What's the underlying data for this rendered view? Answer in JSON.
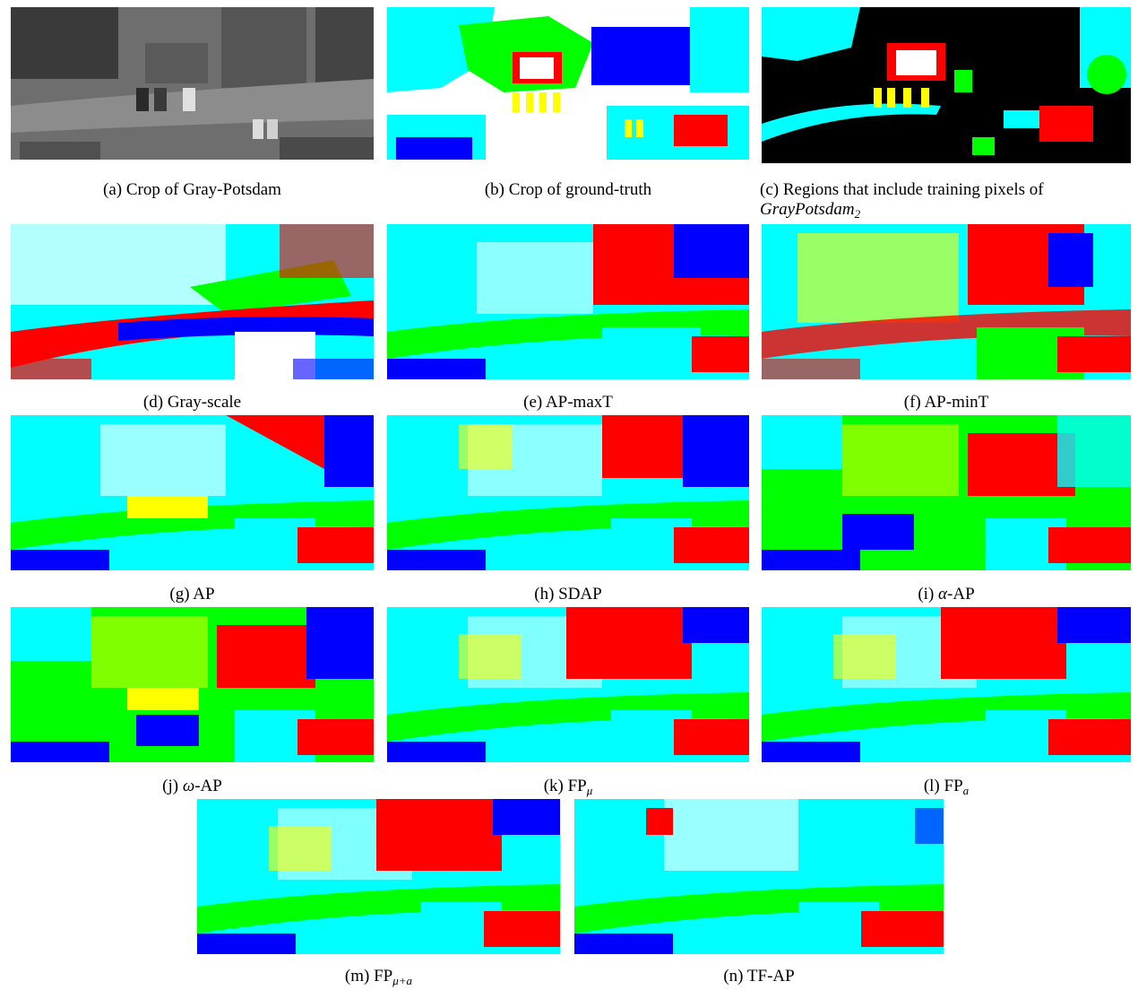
{
  "figure": {
    "panels": [
      {
        "id": "a",
        "label": "(a)",
        "caption": "Crop of Gray-Potsdam"
      },
      {
        "id": "b",
        "label": "(b)",
        "caption": "Crop of ground-truth"
      },
      {
        "id": "c",
        "label": "(c)",
        "caption": "Regions that include training pixels of",
        "caption_math": "GrayPotsdam",
        "caption_math_sub": "2"
      },
      {
        "id": "d",
        "label": "(d)",
        "caption": "Gray-scale"
      },
      {
        "id": "e",
        "label": "(e)",
        "caption": "AP-maxT"
      },
      {
        "id": "f",
        "label": "(f)",
        "caption": "AP-minT"
      },
      {
        "id": "g",
        "label": "(g)",
        "caption": "AP"
      },
      {
        "id": "h",
        "label": "(h)",
        "caption": "SDAP"
      },
      {
        "id": "i",
        "label": "(i)",
        "caption_greek": "α",
        "caption": "-AP"
      },
      {
        "id": "j",
        "label": "(j)",
        "caption_greek": "ω",
        "caption": "-AP"
      },
      {
        "id": "k",
        "label": "(k)",
        "caption": "FP",
        "caption_sub": "μ"
      },
      {
        "id": "l",
        "label": "(l)",
        "caption": "FP",
        "caption_sub": "a"
      },
      {
        "id": "m",
        "label": "(m)",
        "caption": "FP",
        "caption_sub": "μ+a"
      },
      {
        "id": "n",
        "label": "(n)",
        "caption": "TF-AP"
      }
    ],
    "colors": {
      "impervious": "#ffffff",
      "building": "#0000ff",
      "low_vegetation": "#00ffff",
      "tree": "#00ff00",
      "car": "#ffff00",
      "clutter": "#ff0000",
      "unlabeled": "#000000"
    }
  }
}
